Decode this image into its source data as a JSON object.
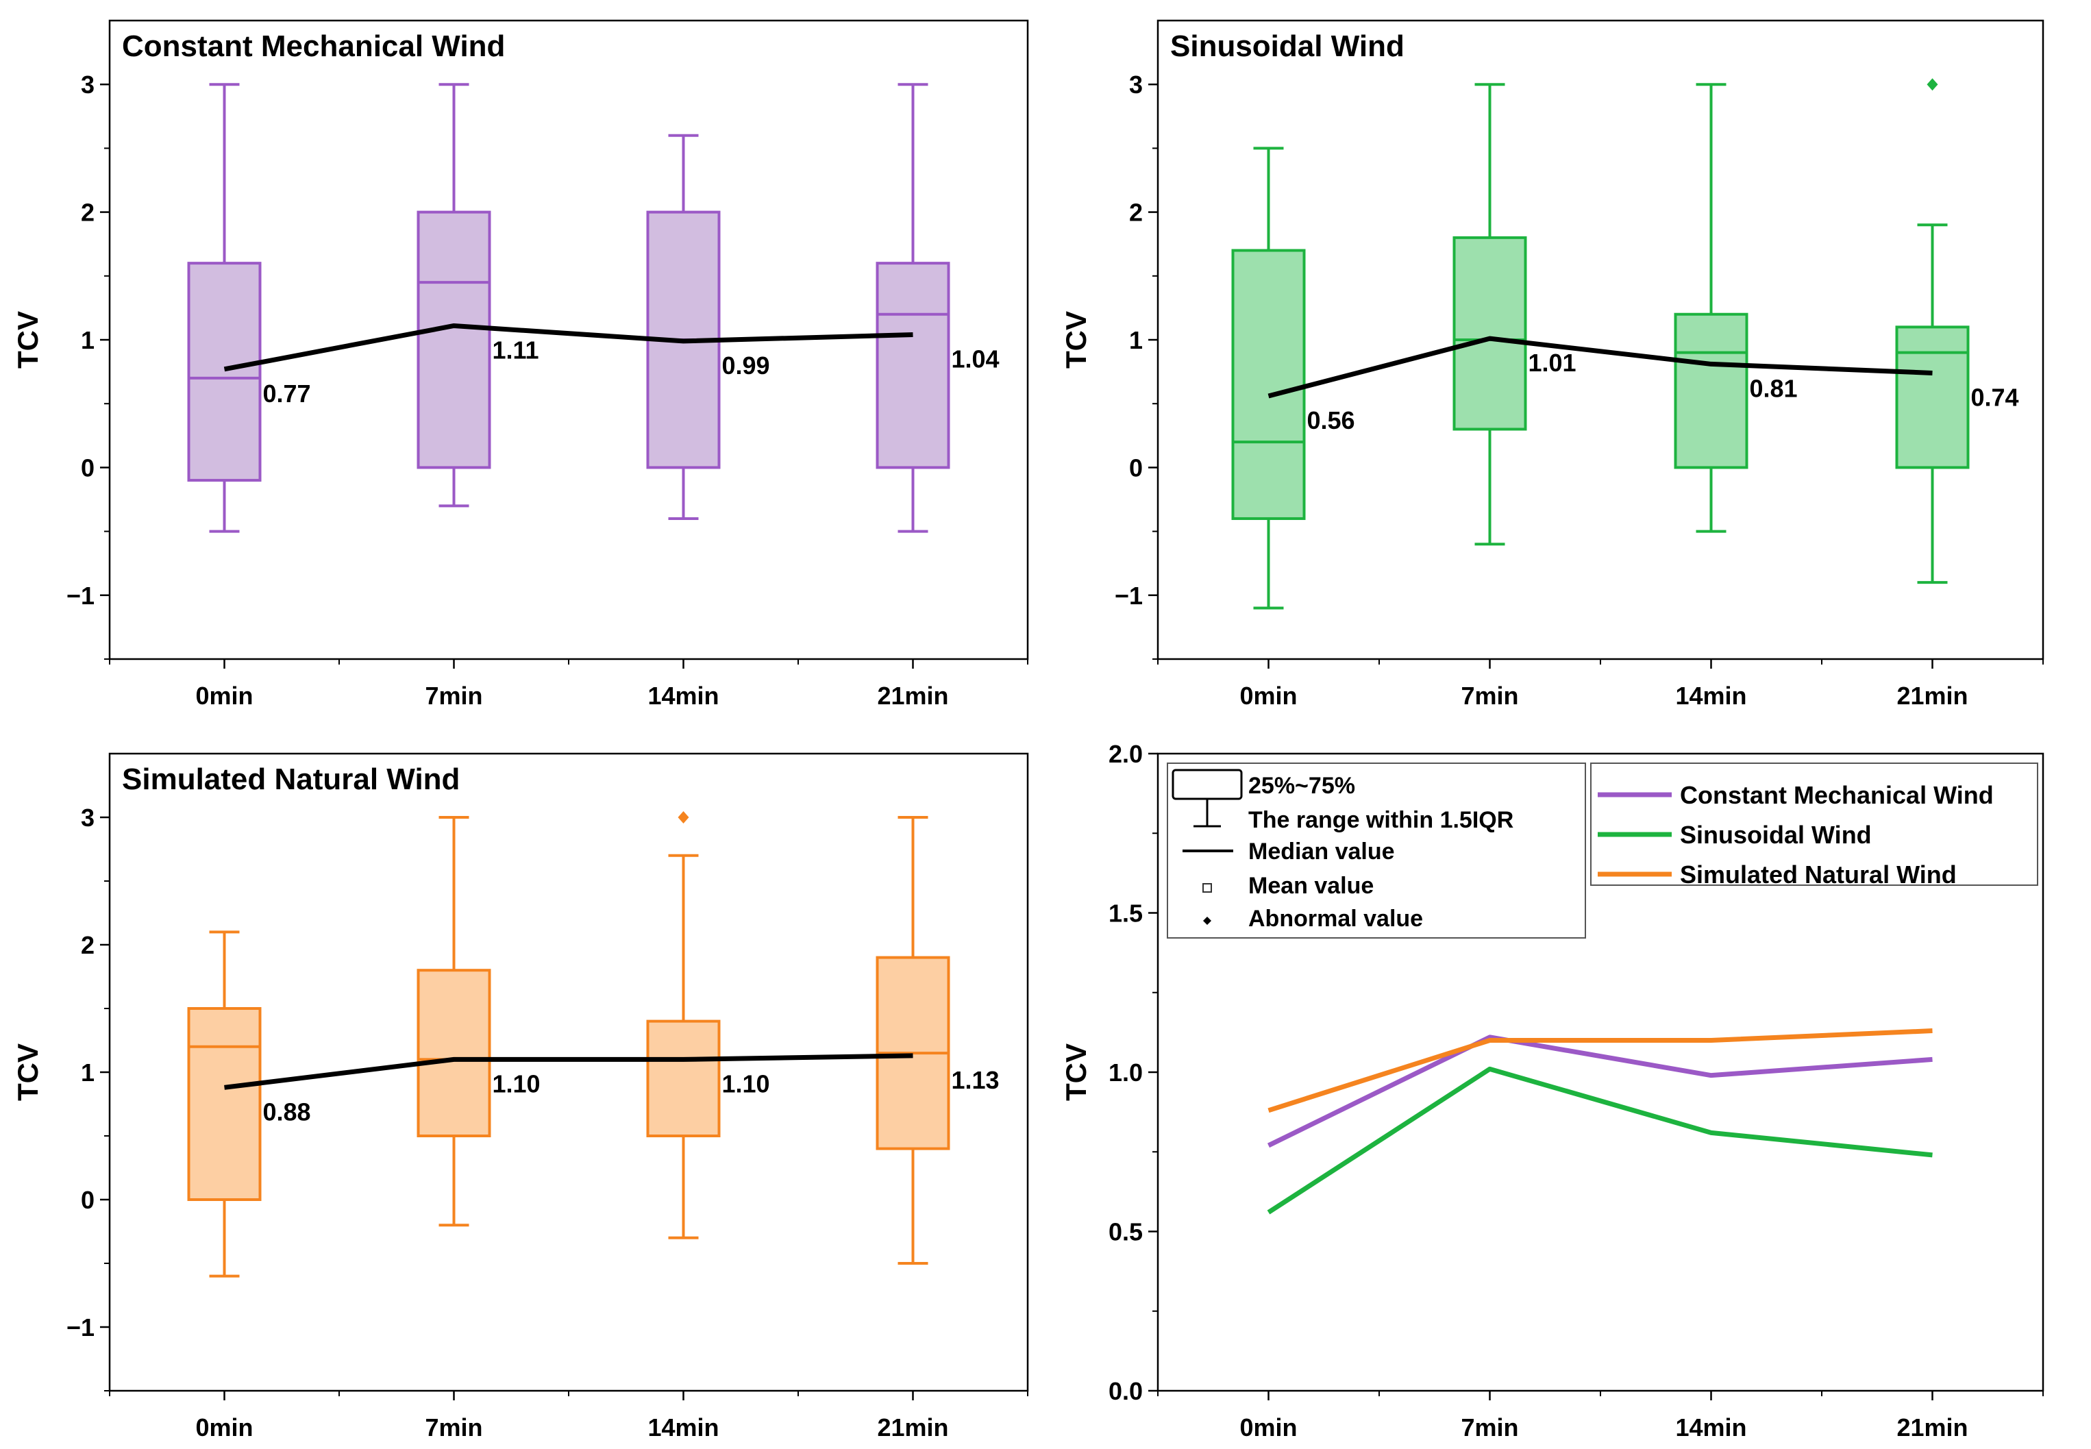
{
  "chart_data": [
    {
      "type": "box",
      "title": "Constant Mechanical Wind",
      "ylabel": "TCV",
      "categories": [
        "0min",
        "7min",
        "14min",
        "21min"
      ],
      "ylim": [
        -1.5,
        3.5
      ],
      "yticks": [
        -1,
        0,
        1,
        2,
        3
      ],
      "color": "#9b59c6",
      "fill": "#d2bde0",
      "boxes": [
        {
          "whisker_low": -0.5,
          "q1": -0.1,
          "median": 0.7,
          "q3": 1.6,
          "whisker_high": 3.0,
          "outliers": []
        },
        {
          "whisker_low": -0.3,
          "q1": 0.0,
          "median": 1.45,
          "q3": 2.0,
          "whisker_high": 3.0,
          "outliers": []
        },
        {
          "whisker_low": -0.4,
          "q1": 0.0,
          "median": 1.0,
          "q3": 2.0,
          "whisker_high": 2.6,
          "outliers": []
        },
        {
          "whisker_low": -0.5,
          "q1": 0.0,
          "median": 1.2,
          "q3": 1.6,
          "whisker_high": 3.0,
          "outliers": []
        }
      ],
      "means": [
        0.77,
        1.11,
        0.99,
        1.04
      ],
      "mean_labels": [
        "0.77",
        "1.11",
        "0.99",
        "1.04"
      ]
    },
    {
      "type": "box",
      "title": "Sinusoidal Wind",
      "ylabel": "TCV",
      "categories": [
        "0min",
        "7min",
        "14min",
        "21min"
      ],
      "ylim": [
        -1.5,
        3.5
      ],
      "yticks": [
        -1,
        0,
        1,
        2,
        3
      ],
      "color": "#1db33f",
      "fill": "#9de0ad",
      "boxes": [
        {
          "whisker_low": -1.1,
          "q1": -0.4,
          "median": 0.2,
          "q3": 1.7,
          "whisker_high": 2.5,
          "outliers": []
        },
        {
          "whisker_low": -0.6,
          "q1": 0.3,
          "median": 1.0,
          "q3": 1.8,
          "whisker_high": 3.0,
          "outliers": []
        },
        {
          "whisker_low": -0.5,
          "q1": 0.0,
          "median": 0.9,
          "q3": 1.2,
          "whisker_high": 3.0,
          "outliers": []
        },
        {
          "whisker_low": -0.9,
          "q1": 0.0,
          "median": 0.9,
          "q3": 1.1,
          "whisker_high": 1.9,
          "outliers": [
            3.0
          ]
        }
      ],
      "means": [
        0.56,
        1.01,
        0.81,
        0.74
      ],
      "mean_labels": [
        "0.56",
        "1.01",
        "0.81",
        "0.74"
      ]
    },
    {
      "type": "box",
      "title": "Simulated Natural Wind",
      "ylabel": "TCV",
      "categories": [
        "0min",
        "7min",
        "14min",
        "21min"
      ],
      "ylim": [
        -1.5,
        3.5
      ],
      "yticks": [
        -1,
        0,
        1,
        2,
        3
      ],
      "color": "#f5841f",
      "fill": "#fdcfa3",
      "boxes": [
        {
          "whisker_low": -0.6,
          "q1": 0.0,
          "median": 1.2,
          "q3": 1.5,
          "whisker_high": 2.1,
          "outliers": []
        },
        {
          "whisker_low": -0.2,
          "q1": 0.5,
          "median": 1.1,
          "q3": 1.8,
          "whisker_high": 3.0,
          "outliers": []
        },
        {
          "whisker_low": -0.3,
          "q1": 0.5,
          "median": 1.1,
          "q3": 1.4,
          "whisker_high": 2.7,
          "outliers": [
            3.0
          ]
        },
        {
          "whisker_low": -0.5,
          "q1": 0.4,
          "median": 1.15,
          "q3": 1.9,
          "whisker_high": 3.0,
          "outliers": []
        }
      ],
      "means": [
        0.88,
        1.1,
        1.1,
        1.13
      ],
      "mean_labels": [
        "0.88",
        "1.10",
        "1.10",
        "1.13"
      ]
    },
    {
      "type": "line",
      "title": "",
      "ylabel": "TCV",
      "categories": [
        "0min",
        "7min",
        "14min",
        "21min"
      ],
      "ylim": [
        0.0,
        2.0
      ],
      "yticks": [
        "0.0",
        "0.5",
        "1.0",
        "1.5",
        "2.0"
      ],
      "series": [
        {
          "name": "Constant Mechanical Wind",
          "color": "#9b59c6",
          "values": [
            0.77,
            1.11,
            0.99,
            1.04
          ]
        },
        {
          "name": "Sinusoidal Wind",
          "color": "#1db33f",
          "values": [
            0.56,
            1.01,
            0.81,
            0.74
          ]
        },
        {
          "name": "Simulated Natural Wind",
          "color": "#f5841f",
          "values": [
            0.88,
            1.1,
            1.1,
            1.13
          ]
        }
      ],
      "key_legend": [
        "25%~75%",
        "The range within 1.5IQR",
        "Median value",
        "Mean value",
        "Abnormal value"
      ]
    }
  ]
}
